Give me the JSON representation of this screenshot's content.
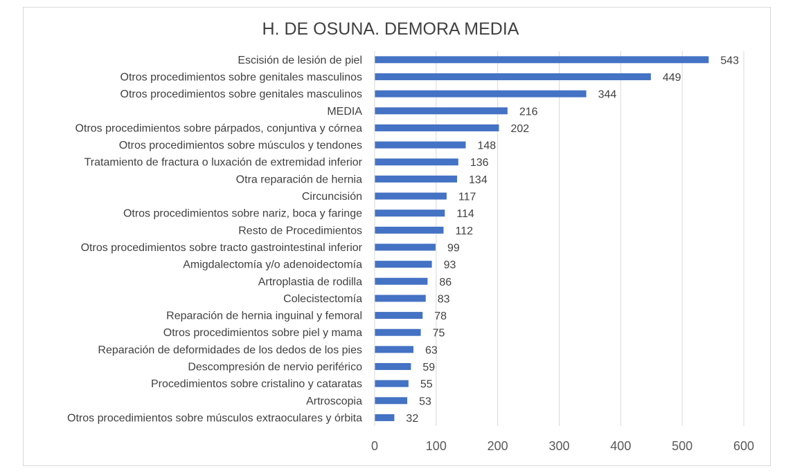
{
  "chart_data": {
    "type": "bar",
    "orientation": "horizontal",
    "title": "H. DE OSUNA. DEMORA MEDIA",
    "xlabel": "",
    "ylabel": "",
    "xlim": [
      0,
      600
    ],
    "xticks": [
      0,
      100,
      200,
      300,
      400,
      500,
      600
    ],
    "grid": "vertical",
    "legend": "none",
    "bar_color": "#4472c4",
    "categories": [
      "Escisión de lesión de piel",
      "Otros procedimientos sobre genitales masculinos",
      "Otros procedimientos sobre genitales masculinos",
      "MEDIA",
      "Otros procedimientos sobre párpados, conjuntiva y córnea",
      "Otros procedimientos sobre músculos y tendones",
      "Tratamiento de fractura o luxación de extremidad inferior",
      "Otra reparación de hernia",
      "Circuncisión",
      "Otros procedimientos sobre nariz, boca y faringe",
      "Resto de Procedimientos",
      "Otros procedimientos sobre tracto gastrointestinal inferior",
      "Amigdalectomía y/o adenoidectomía",
      "Artroplastia de rodilla",
      "Colecistectomía",
      "Reparación de hernia inguinal y femoral",
      "Otros procedimientos sobre piel y mama",
      "Reparación de deformidades de los dedos de los pies",
      "Descompresión de nervio periférico",
      "Procedimientos sobre cristalino y cataratas",
      "Artroscopia",
      "Otros procedimientos sobre músculos extraoculares y órbita"
    ],
    "values": [
      543,
      449,
      344,
      216,
      202,
      148,
      136,
      134,
      117,
      114,
      112,
      99,
      93,
      86,
      83,
      78,
      75,
      63,
      59,
      55,
      53,
      32
    ]
  }
}
